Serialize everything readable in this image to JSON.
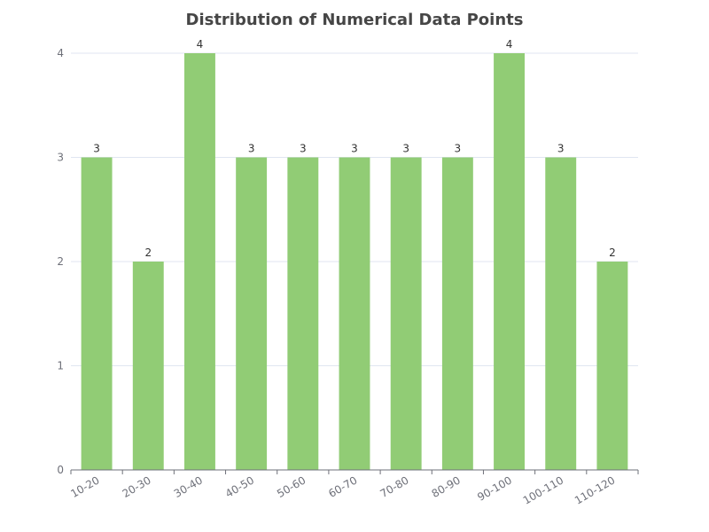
{
  "chart_data": {
    "type": "bar",
    "title": "Distribution of Numerical Data Points",
    "xlabel": "",
    "ylabel": "",
    "categories": [
      "10-20",
      "20-30",
      "30-40",
      "40-50",
      "50-60",
      "60-70",
      "70-80",
      "80-90",
      "90-100",
      "100-110",
      "110-120"
    ],
    "values": [
      3,
      2,
      4,
      3,
      3,
      3,
      3,
      3,
      4,
      3,
      2
    ],
    "ylim": [
      0,
      4
    ],
    "yticks": [
      0,
      1,
      2,
      3,
      4
    ],
    "grid": "horizontal",
    "bar_color": "#91cc75",
    "show_data_labels": true,
    "legend": "none"
  }
}
